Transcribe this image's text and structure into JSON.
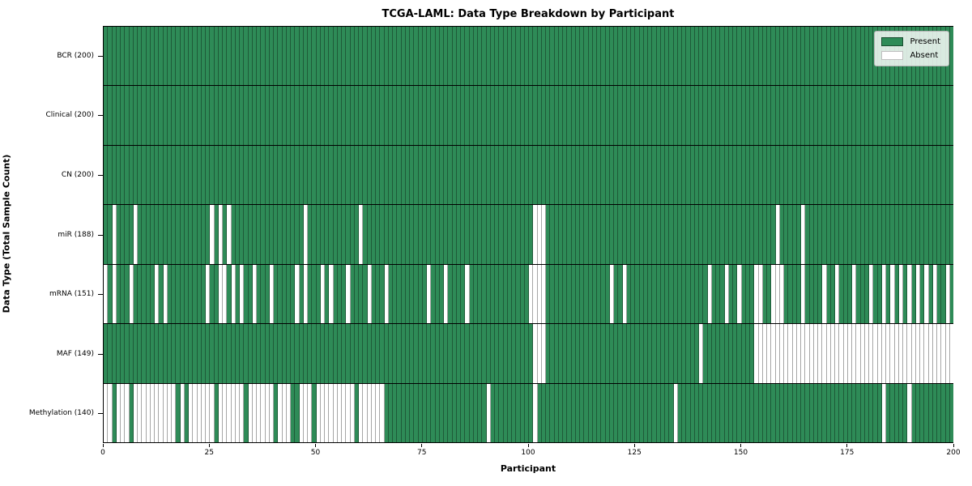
{
  "chart_data": {
    "type": "heatmap",
    "title": "TCGA-LAML: Data Type Breakdown by Participant",
    "xlabel": "Participant",
    "ylabel": "Data Type (Total Sample Count)",
    "x_range": [
      0,
      200
    ],
    "n_participants": 200,
    "x_ticks": [
      0,
      25,
      50,
      75,
      100,
      125,
      150,
      175,
      200
    ],
    "grid": false,
    "legend_position": "upper right",
    "legend": [
      {
        "label": "Present",
        "color": "#2e8b57"
      },
      {
        "label": "Absent",
        "color": "#ffffff"
      }
    ],
    "colors": {
      "present": "#2e8b57",
      "absent": "#ffffff",
      "cell_edge": "rgba(0,0,0,0.35)",
      "row_divider": "#000000",
      "plot_border": "#000000"
    },
    "rows": [
      {
        "name": "BCR",
        "label": "BCR (200)",
        "present_count": 200,
        "absent": []
      },
      {
        "name": "Clinical",
        "label": "Clinical (200)",
        "present_count": 200,
        "absent": []
      },
      {
        "name": "CN",
        "label": "CN (200)",
        "present_count": 200,
        "absent": []
      },
      {
        "name": "miR",
        "label": "miR (188)",
        "present_count": 188,
        "absent": [
          2,
          7,
          25,
          27,
          29,
          47,
          60,
          101,
          102,
          103,
          158,
          164
        ]
      },
      {
        "name": "mRNA",
        "label": "mRNA (151)",
        "present_count": 151,
        "absent": [
          0,
          2,
          6,
          12,
          14,
          24,
          27,
          28,
          30,
          32,
          35,
          39,
          45,
          47,
          51,
          53,
          57,
          62,
          66,
          76,
          80,
          85,
          100,
          101,
          102,
          103,
          119,
          122,
          142,
          146,
          149,
          153,
          154,
          157,
          158,
          159,
          164,
          169,
          172,
          176,
          180,
          183,
          185,
          187,
          189,
          191,
          193,
          195,
          198
        ]
      },
      {
        "name": "MAF",
        "label": "MAF (149)",
        "present_count": 149,
        "absent": [
          101,
          102,
          103,
          140,
          153,
          154,
          155,
          156,
          157,
          158,
          159,
          160,
          161,
          162,
          163,
          164,
          165,
          166,
          167,
          168,
          169,
          170,
          171,
          172,
          173,
          174,
          175,
          176,
          177,
          178,
          179,
          180,
          181,
          182,
          183,
          184,
          185,
          186,
          187,
          188,
          189,
          190,
          191,
          192,
          193,
          194,
          195,
          196,
          197,
          198,
          199
        ]
      },
      {
        "name": "Methylation",
        "label": "Methylation (140)",
        "present_count": 140,
        "absent": [
          0,
          1,
          3,
          4,
          5,
          7,
          8,
          9,
          10,
          11,
          12,
          13,
          14,
          15,
          16,
          18,
          20,
          21,
          22,
          23,
          24,
          25,
          27,
          28,
          29,
          30,
          31,
          32,
          34,
          35,
          36,
          37,
          38,
          39,
          41,
          42,
          43,
          46,
          47,
          48,
          50,
          51,
          52,
          53,
          54,
          55,
          56,
          57,
          58,
          60,
          61,
          62,
          63,
          64,
          65,
          90,
          101,
          134,
          183,
          189
        ]
      }
    ]
  }
}
